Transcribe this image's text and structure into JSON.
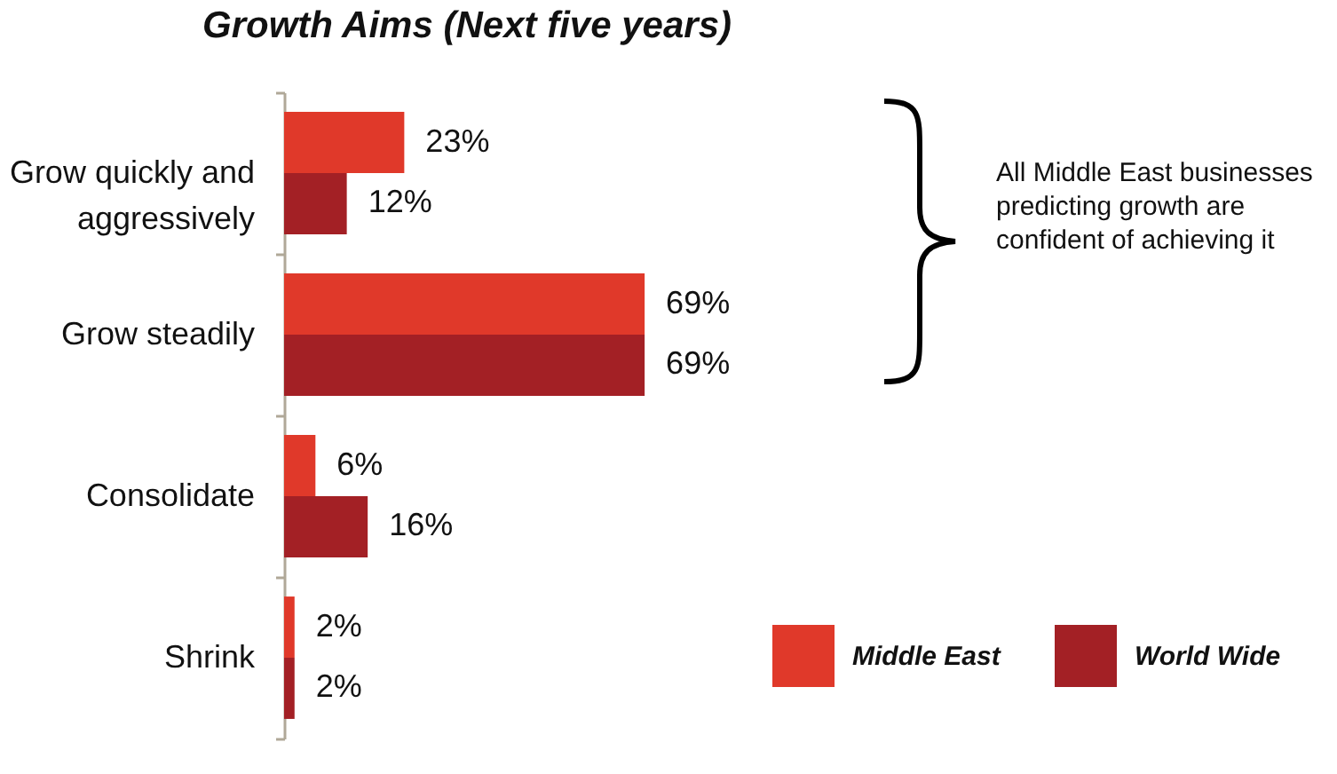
{
  "chart_data": {
    "type": "bar",
    "orientation": "horizontal",
    "title": "Growth Aims (Next five years)",
    "categories": [
      "Grow quickly and aggressively",
      "Grow steadily",
      "Consolidate",
      "Shrink"
    ],
    "series": [
      {
        "name": "Middle East",
        "color": "#e0392a",
        "values": [
          23,
          69,
          6,
          2
        ],
        "value_labels": [
          "23%",
          "69%",
          "6%",
          "2%"
        ]
      },
      {
        "name": "World Wide",
        "color": "#a32025",
        "values": [
          12,
          69,
          16,
          2
        ],
        "value_labels": [
          "12%",
          "69%",
          "16%",
          "2%"
        ]
      }
    ],
    "legend": "bottom right",
    "grid": false,
    "annotations": [
      "All Middle East businesses predicting growth are confident of achieving it"
    ]
  }
}
